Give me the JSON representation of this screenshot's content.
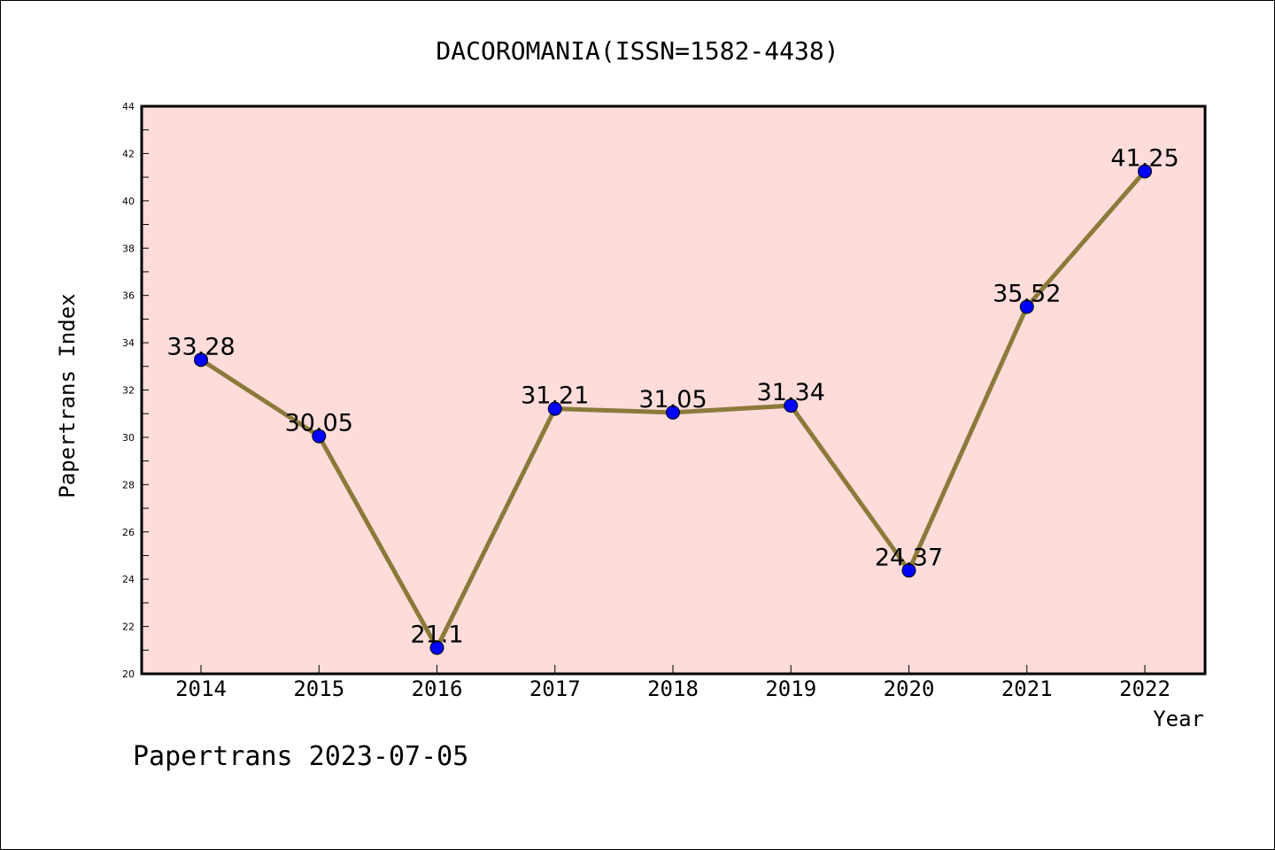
{
  "chart_data": {
    "type": "line",
    "title": "DACOROMANIA(ISSN=1582-4438)",
    "xlabel": "Year",
    "ylabel": "Papertrans Index",
    "categories": [
      "2014",
      "2015",
      "2016",
      "2017",
      "2018",
      "2019",
      "2020",
      "2021",
      "2022"
    ],
    "values": [
      33.28,
      30.05,
      21.1,
      31.21,
      31.05,
      31.34,
      24.37,
      35.52,
      41.25
    ],
    "data_labels": [
      "33.28",
      "30.05",
      "21.1",
      "31.21",
      "31.05",
      "31.34",
      "24.37",
      "35.52",
      "41.25"
    ],
    "ylim": [
      20,
      44
    ],
    "y_ticks": [
      "20",
      "22",
      "24",
      "26",
      "28",
      "30",
      "32",
      "34",
      "36",
      "38",
      "40",
      "42",
      "44"
    ],
    "grid": false,
    "line_color": "#8b7a3a",
    "marker_color": "#0000ff",
    "plot_background": "#fddcda"
  },
  "footer": {
    "text": "Papertrans 2023-07-05"
  }
}
